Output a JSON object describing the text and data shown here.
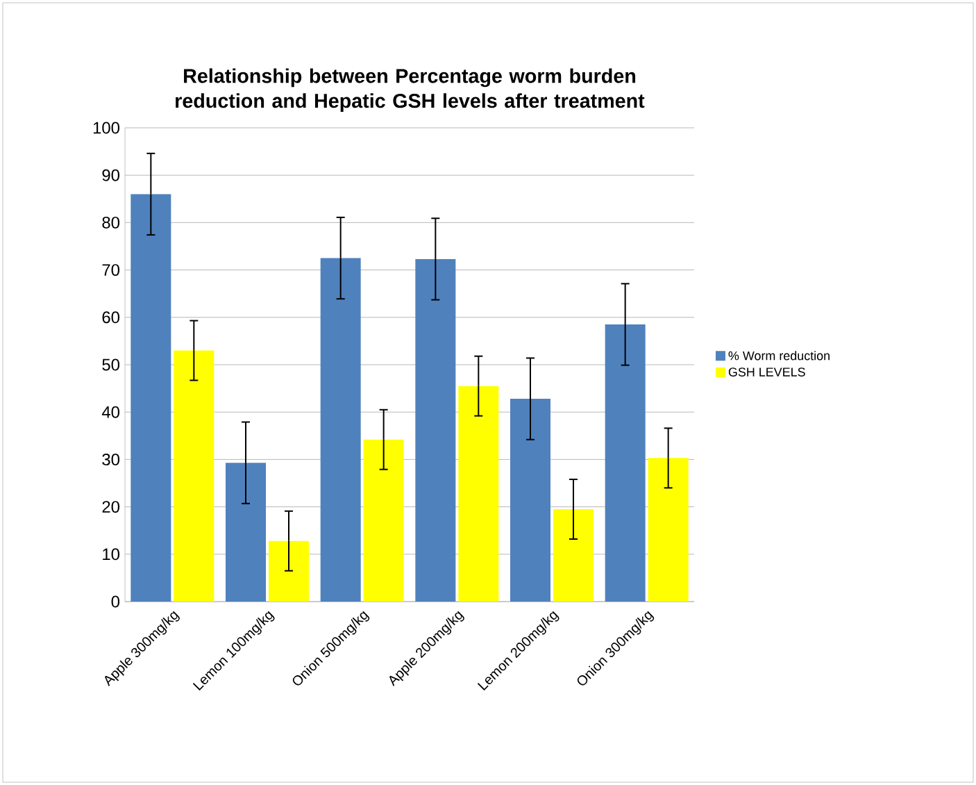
{
  "chart_data": {
    "type": "bar",
    "title": "Relationship between Percentage worm burden reduction and Hepatic GSH levels after treatment",
    "categories": [
      "Apple 300mg/kg",
      "Lemon 100mg/kg",
      "Onion 500mg/kg",
      "Apple 200mg/kg",
      "Lemon 200mg/kg",
      "Onion 300mg/kg"
    ],
    "series": [
      {
        "name": "% Worm reduction",
        "color": "#4f81bd",
        "values": [
          86,
          29.3,
          72.5,
          72.3,
          42.8,
          58.5
        ],
        "errors": [
          8.6,
          8.6,
          8.6,
          8.6,
          8.6,
          8.6
        ]
      },
      {
        "name": "GSH LEVELS",
        "color": "#ffff00",
        "values": [
          53,
          12.8,
          34.2,
          45.5,
          19.5,
          30.3
        ],
        "errors": [
          6.3,
          6.3,
          6.3,
          6.3,
          6.3,
          6.3
        ]
      }
    ],
    "ylim": [
      0,
      100
    ],
    "yticks": [
      0,
      10,
      20,
      30,
      40,
      50,
      60,
      70,
      80,
      90,
      100
    ],
    "grid": "y",
    "legend": "right"
  }
}
